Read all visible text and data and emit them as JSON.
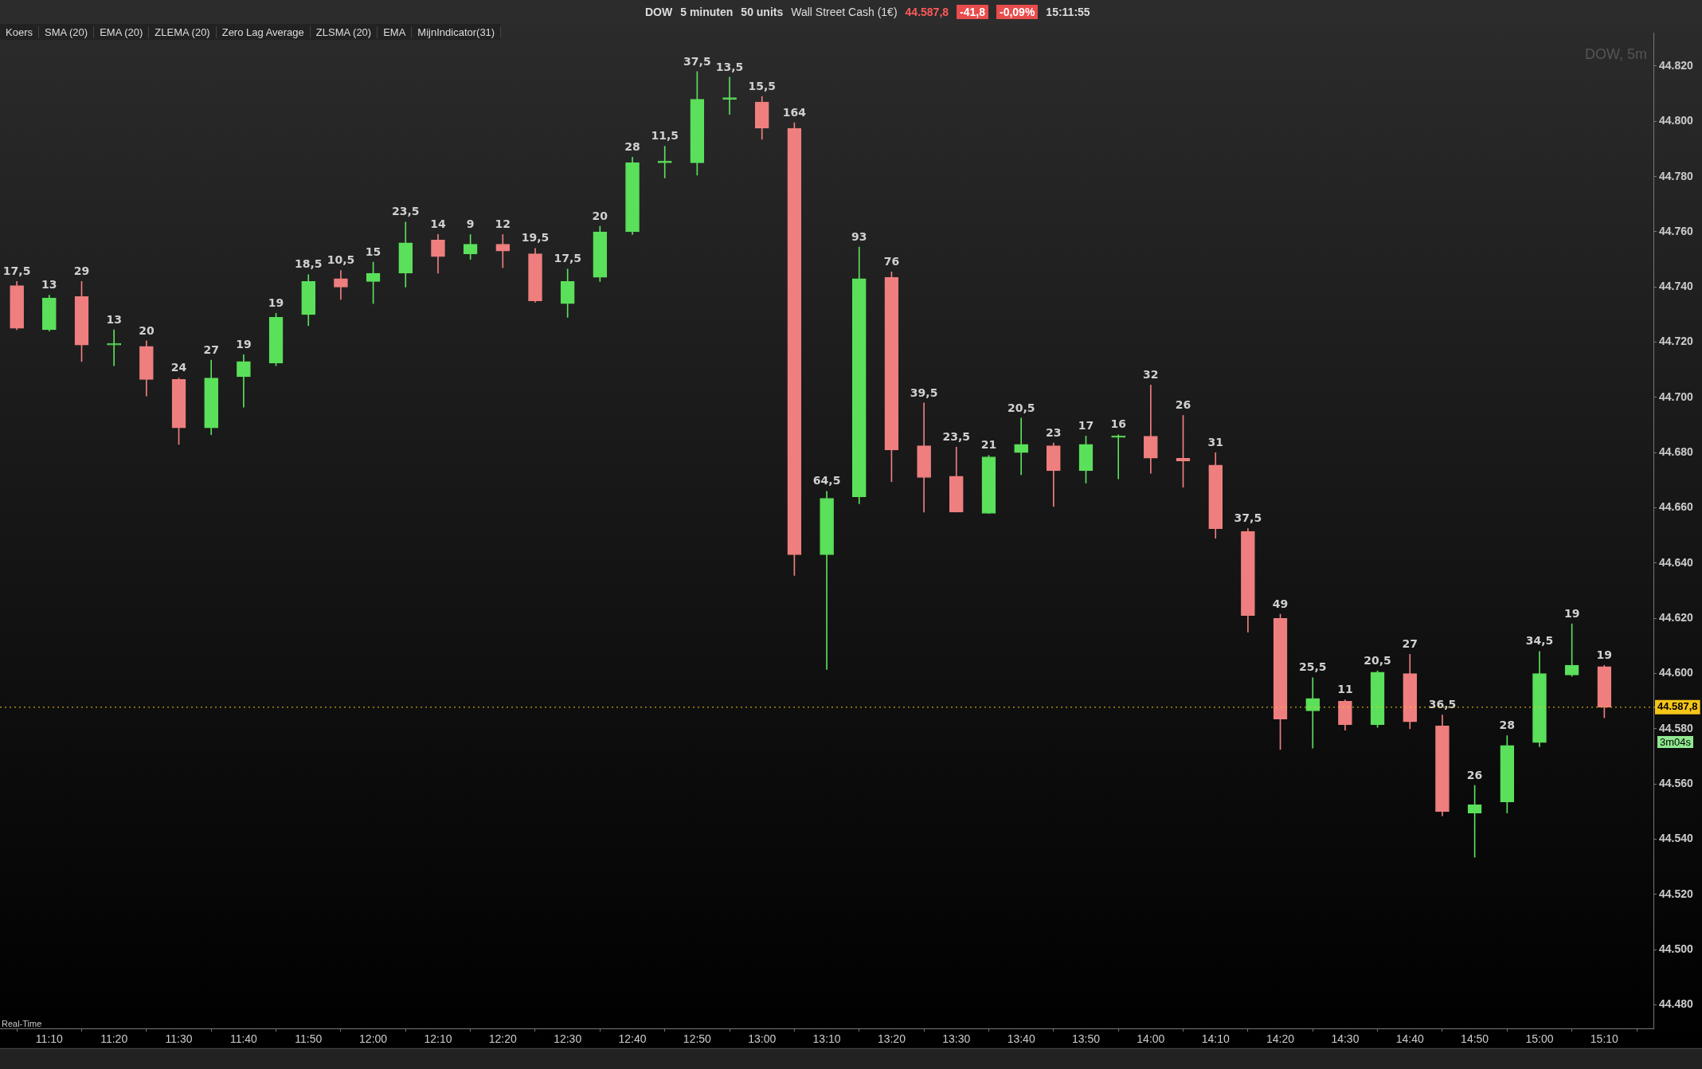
{
  "chart_data": {
    "type": "candlestick",
    "title": "DOW, 5m",
    "x": [
      11.0833,
      11.1667,
      11.25,
      11.3333,
      11.4167,
      11.5,
      11.5833,
      11.6667,
      11.75,
      11.8333,
      11.9167,
      12,
      12.0833,
      12.1667,
      12.25,
      12.3333,
      12.4167,
      12.5,
      12.5833,
      12.6667,
      12.75,
      12.8333,
      12.9167,
      13,
      13.0833,
      13.1667,
      13.25,
      13.3333,
      13.4167,
      13.5,
      13.5833,
      13.6667,
      13.75,
      13.8333,
      13.9167,
      14,
      14.0833,
      14.1667,
      14.25,
      14.3333,
      14.4167,
      14.5,
      14.5833,
      14.6667,
      14.75,
      14.8333,
      14.9167,
      15,
      15.0833,
      15.1667
    ],
    "ohlc": [
      [
        44740.5,
        44742,
        44724.5,
        44725
      ],
      [
        44724.5,
        44737,
        44724,
        44736
      ],
      [
        44736.5,
        44742,
        44713,
        44719
      ],
      [
        44719,
        44724.5,
        44711.5,
        44719
      ],
      [
        44718.5,
        44720.5,
        44700.5,
        44706.5
      ],
      [
        44706.5,
        44707,
        44683,
        44689
      ],
      [
        44689,
        44713.5,
        44686.5,
        44707
      ],
      [
        44707.5,
        44715.5,
        44696.5,
        44713
      ],
      [
        44712.5,
        44730.5,
        44711.5,
        44729
      ],
      [
        44730,
        44744.5,
        44726,
        44742
      ],
      [
        44743,
        44746,
        44735.5,
        44740
      ],
      [
        44742,
        44749,
        44734,
        44745
      ],
      [
        44745,
        44763.5,
        44740,
        44756
      ],
      [
        44757,
        44759,
        44745,
        44751
      ],
      [
        44752,
        44759,
        44750,
        44755.5
      ],
      [
        44755.5,
        44759,
        44747,
        44753
      ],
      [
        44752,
        44754,
        44734.5,
        44735
      ],
      [
        44734,
        44746.5,
        44729,
        44742
      ],
      [
        44743.5,
        44762,
        44742,
        44760
      ],
      [
        44760,
        44787,
        44759,
        44785
      ],
      [
        44785,
        44791,
        44779.5,
        44785.5
      ],
      [
        44785,
        44818,
        44780.5,
        44808
      ],
      [
        44808,
        44816,
        44802.5,
        44808.5
      ],
      [
        44807,
        44809,
        44793.5,
        44797.5
      ],
      [
        44797.5,
        44799.5,
        44635.5,
        44643
      ],
      [
        44643,
        44666,
        44601.5,
        44663.5
      ],
      [
        44664,
        44754.5,
        44661.5,
        44743
      ],
      [
        44743.5,
        44745.5,
        44669.5,
        44681
      ],
      [
        44682.5,
        44698,
        44658.5,
        44671
      ],
      [
        44671.5,
        44682,
        44658.5,
        44658.5
      ],
      [
        44658,
        44679,
        44658,
        44678.5
      ],
      [
        44680,
        44692.5,
        44672,
        44683
      ],
      [
        44682.5,
        44683.5,
        44660.5,
        44673.5
      ],
      [
        44673.5,
        44686,
        44669,
        44683
      ],
      [
        44685.5,
        44686.5,
        44670.5,
        44685.5
      ],
      [
        44686,
        44704.5,
        44672.5,
        44678
      ],
      [
        44678,
        44693.5,
        44667.5,
        44677
      ],
      [
        44675.5,
        44680,
        44649,
        44652.5
      ],
      [
        44651.5,
        44652.5,
        44615,
        44621
      ],
      [
        44620,
        44621.5,
        44572.5,
        44583.5
      ],
      [
        44586.5,
        44598.5,
        44573,
        44591
      ],
      [
        44590,
        44590.5,
        44579.5,
        44581.5
      ],
      [
        44581.5,
        44601,
        44580.5,
        44600.5
      ],
      [
        44600,
        44607,
        44580,
        44582.5
      ],
      [
        44581,
        44585,
        44548.5,
        44550
      ],
      [
        44549.5,
        44559.5,
        44533.5,
        44552.5
      ],
      [
        44553.5,
        44577.5,
        44549.5,
        44574
      ],
      [
        44575,
        44608,
        44573.5,
        44600
      ],
      [
        44599.5,
        44618,
        44599,
        44603
      ],
      [
        44602.5,
        44603,
        44584,
        44587.8
      ]
    ],
    "colors": [
      "#ef7f7f",
      "#5be05b",
      "#ef7f7f",
      "#5be05b",
      "#ef7f7f",
      "#ef7f7f",
      "#5be05b",
      "#5be05b",
      "#5be05b",
      "#5be05b",
      "#ef7f7f",
      "#5be05b",
      "#5be05b",
      "#ef7f7f",
      "#5be05b",
      "#ef7f7f",
      "#ef7f7f",
      "#5be05b",
      "#5be05b",
      "#5be05b",
      "#5be05b",
      "#5be05b",
      "#5be05b",
      "#ef7f7f",
      "#ef7f7f",
      "#5be05b",
      "#5be05b",
      "#ef7f7f",
      "#ef7f7f",
      "#ef7f7f",
      "#5be05b",
      "#5be05b",
      "#ef7f7f",
      "#5be05b",
      "#5be05b",
      "#ef7f7f",
      "#ef7f7f",
      "#ef7f7f",
      "#ef7f7f",
      "#ef7f7f",
      "#5be05b",
      "#ef7f7f",
      "#5be05b",
      "#ef7f7f",
      "#ef7f7f",
      "#5be05b",
      "#5be05b",
      "#5be05b",
      "#5be05b",
      "#ef7f7f"
    ],
    "xlim": [
      11.04,
      15.293
    ],
    "xticks": [
      {
        "value": 11.1667,
        "label": "11:10"
      },
      {
        "value": 11.3333,
        "label": "11:20"
      },
      {
        "value": 11.5,
        "label": "11:30"
      },
      {
        "value": 11.6667,
        "label": "11:40"
      },
      {
        "value": 11.8333,
        "label": "11:50"
      },
      {
        "value": 12,
        "label": "12:00"
      },
      {
        "value": 12.1667,
        "label": "12:10"
      },
      {
        "value": 12.3333,
        "label": "12:20"
      },
      {
        "value": 12.5,
        "label": "12:30"
      },
      {
        "value": 12.6667,
        "label": "12:40"
      },
      {
        "value": 12.8333,
        "label": "12:50"
      },
      {
        "value": 13,
        "label": "13:00"
      },
      {
        "value": 13.1667,
        "label": "13:10"
      },
      {
        "value": 13.3333,
        "label": "13:20"
      },
      {
        "value": 13.5,
        "label": "13:30"
      },
      {
        "value": 13.6667,
        "label": "13:40"
      },
      {
        "value": 13.8333,
        "label": "13:50"
      },
      {
        "value": 14,
        "label": "14:00"
      },
      {
        "value": 14.1667,
        "label": "14:10"
      },
      {
        "value": 14.3333,
        "label": "14:20"
      },
      {
        "value": 14.5,
        "label": "14:30"
      },
      {
        "value": 14.6667,
        "label": "14:40"
      },
      {
        "value": 14.8333,
        "label": "14:50"
      },
      {
        "value": 15,
        "label": "15:00"
      },
      {
        "value": 15.1667,
        "label": "15:10"
      }
    ],
    "ylim": [
      44471.5,
      44832
    ],
    "yticks": [
      {
        "value": 44480,
        "label": "44.480"
      },
      {
        "value": 44500,
        "label": "44.500"
      },
      {
        "value": 44520,
        "label": "44.520"
      },
      {
        "value": 44540,
        "label": "44.540"
      },
      {
        "value": 44560,
        "label": "44.560"
      },
      {
        "value": 44580,
        "label": "44.580"
      },
      {
        "value": 44600,
        "label": "44.600"
      },
      {
        "value": 44620,
        "label": "44.620"
      },
      {
        "value": 44640,
        "label": "44.640"
      },
      {
        "value": 44660,
        "label": "44.660"
      },
      {
        "value": 44680,
        "label": "44.680"
      },
      {
        "value": 44700,
        "label": "44.700"
      },
      {
        "value": 44720,
        "label": "44.720"
      },
      {
        "value": 44740,
        "label": "44.740"
      },
      {
        "value": 44760,
        "label": "44.760"
      },
      {
        "value": 44780,
        "label": "44.780"
      },
      {
        "value": 44800,
        "label": "44.800"
      },
      {
        "value": 44820,
        "label": "44.820"
      }
    ],
    "ref_lines": [
      {
        "axis": "y",
        "value": 44587.8,
        "label": "44.587,8",
        "color": "#f5c518"
      }
    ],
    "annotations": [
      "DOW",
      "5 minuten",
      "50 units",
      "Wall Street Cash (1€)",
      "44.587,8",
      "-41,8",
      "-0,09%",
      "15:11:55",
      "Koers",
      "SMA (20)",
      "EMA (20)",
      "ZLEMA (20)",
      "Zero Lag Average",
      "ZLSMA (20)",
      "EMA",
      "MijnIndicator(31)",
      "Real-Time",
      "3m04s",
      {
        "text": "17,5",
        "x": 11.0833,
        "y": 44742
      },
      {
        "text": "13",
        "x": 11.1667,
        "y": 44737
      },
      {
        "text": "29",
        "x": 11.25,
        "y": 44742
      },
      {
        "text": "13",
        "x": 11.3333,
        "y": 44724.5
      },
      {
        "text": "20",
        "x": 11.4167,
        "y": 44720.5
      },
      {
        "text": "24",
        "x": 11.5,
        "y": 44707
      },
      {
        "text": "27",
        "x": 11.5833,
        "y": 44713.5
      },
      {
        "text": "19",
        "x": 11.6667,
        "y": 44715.5
      },
      {
        "text": "19",
        "x": 11.75,
        "y": 44730.5
      },
      {
        "text": "18,5",
        "x": 11.8333,
        "y": 44744.5
      },
      {
        "text": "10,5",
        "x": 11.9167,
        "y": 44746
      },
      {
        "text": "15",
        "x": 12,
        "y": 44749
      },
      {
        "text": "23,5",
        "x": 12.0833,
        "y": 44763.5
      },
      {
        "text": "14",
        "x": 12.1667,
        "y": 44759
      },
      {
        "text": "9",
        "x": 12.25,
        "y": 44759
      },
      {
        "text": "12",
        "x": 12.3333,
        "y": 44759
      },
      {
        "text": "19,5",
        "x": 12.4167,
        "y": 44754
      },
      {
        "text": "17,5",
        "x": 12.5,
        "y": 44746.5
      },
      {
        "text": "20",
        "x": 12.5833,
        "y": 44762
      },
      {
        "text": "28",
        "x": 12.6667,
        "y": 44787
      },
      {
        "text": "11,5",
        "x": 12.75,
        "y": 44791
      },
      {
        "text": "37,5",
        "x": 12.8333,
        "y": 44818
      },
      {
        "text": "13,5",
        "x": 12.9167,
        "y": 44816
      },
      {
        "text": "15,5",
        "x": 13,
        "y": 44809
      },
      {
        "text": "164",
        "x": 13.0833,
        "y": 44799.5
      },
      {
        "text": "64,5",
        "x": 13.1667,
        "y": 44666
      },
      {
        "text": "93",
        "x": 13.25,
        "y": 44754.5
      },
      {
        "text": "76",
        "x": 13.3333,
        "y": 44745.5
      },
      {
        "text": "39,5",
        "x": 13.4167,
        "y": 44698
      },
      {
        "text": "23,5",
        "x": 13.5,
        "y": 44682
      },
      {
        "text": "21",
        "x": 13.5833,
        "y": 44679
      },
      {
        "text": "20,5",
        "x": 13.6667,
        "y": 44692.5
      },
      {
        "text": "23",
        "x": 13.75,
        "y": 44683.5
      },
      {
        "text": "17",
        "x": 13.8333,
        "y": 44686
      },
      {
        "text": "16",
        "x": 13.9167,
        "y": 44686.5
      },
      {
        "text": "32",
        "x": 14,
        "y": 44704.5
      },
      {
        "text": "26",
        "x": 14.0833,
        "y": 44693.5
      },
      {
        "text": "31",
        "x": 14.1667,
        "y": 44680
      },
      {
        "text": "37,5",
        "x": 14.25,
        "y": 44652.5
      },
      {
        "text": "49",
        "x": 14.3333,
        "y": 44621.5
      },
      {
        "text": "25,5",
        "x": 14.4167,
        "y": 44598.5
      },
      {
        "text": "11",
        "x": 14.5,
        "y": 44590.5
      },
      {
        "text": "20,5",
        "x": 14.5833,
        "y": 44601
      },
      {
        "text": "27",
        "x": 14.6667,
        "y": 44607
      },
      {
        "text": "36,5",
        "x": 14.75,
        "y": 44585
      },
      {
        "text": "26",
        "x": 14.8333,
        "y": 44559.5
      },
      {
        "text": "28",
        "x": 14.9167,
        "y": 44577.5
      },
      {
        "text": "34,5",
        "x": 15,
        "y": 44608
      },
      {
        "text": "19",
        "x": 15.0833,
        "y": 44618
      },
      {
        "text": "19",
        "x": 15.1667,
        "y": 44603
      }
    ],
    "legend": false,
    "grid": false
  }
}
